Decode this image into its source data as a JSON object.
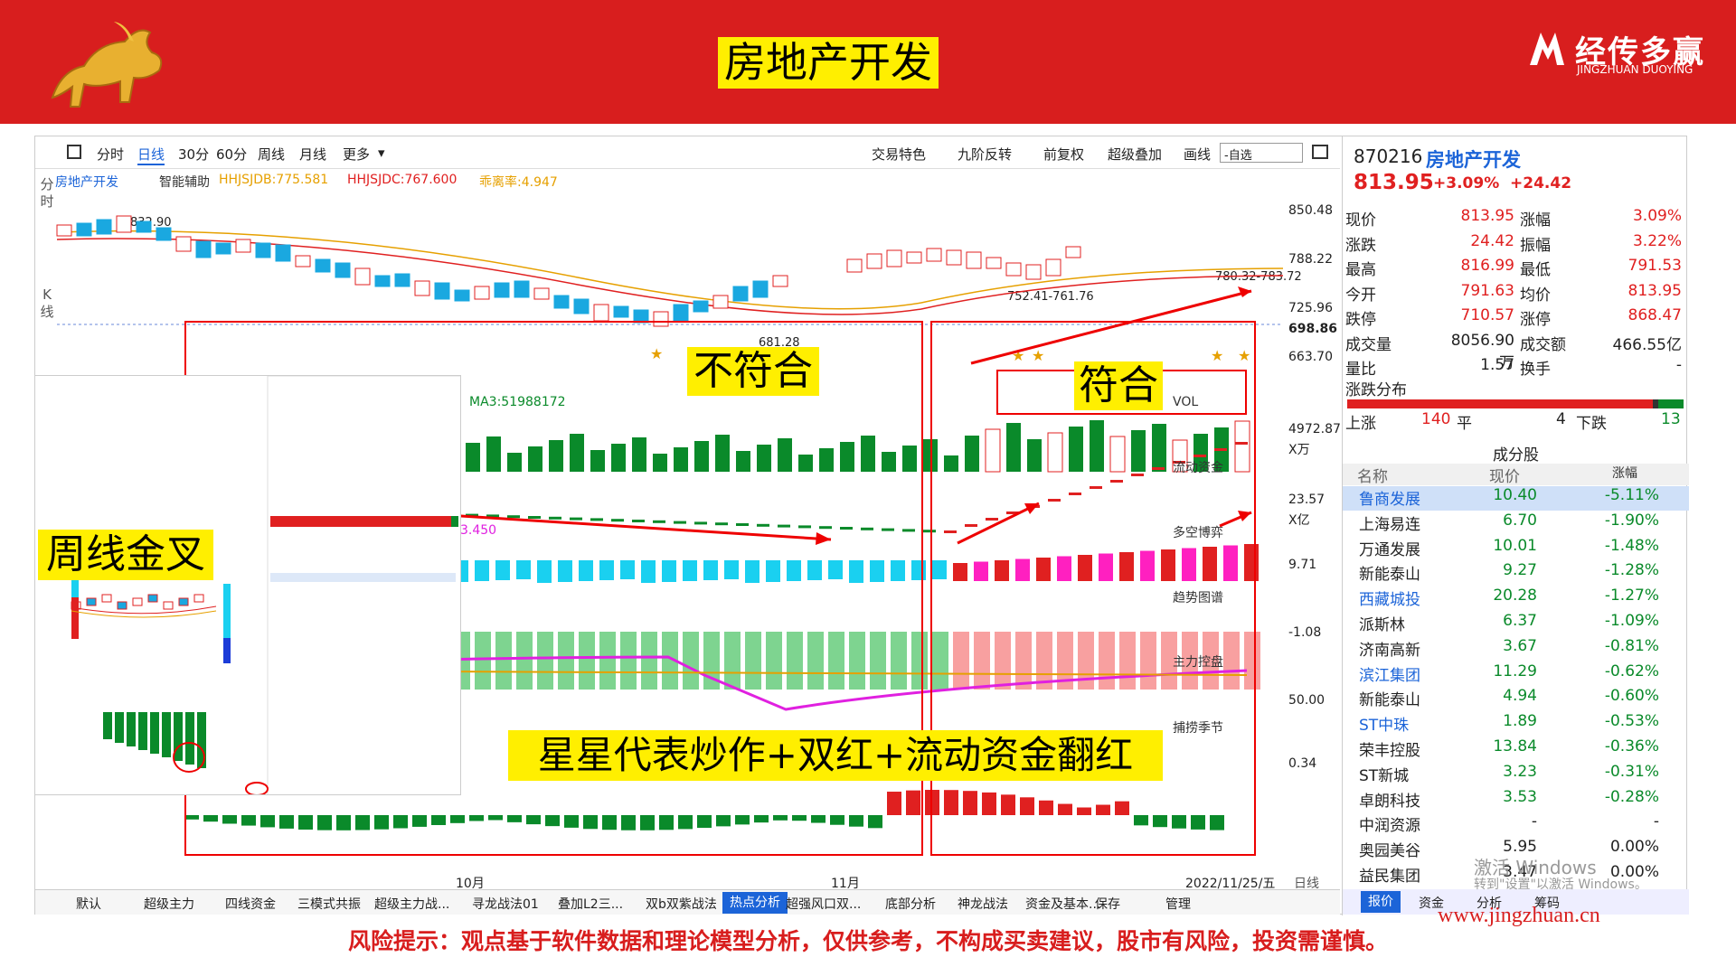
{
  "banner": {
    "title": "房地产开发",
    "logo_cn": "经传多赢",
    "logo_en": "JINGZHUAN DUOYING",
    "url": "www.jingzhuan.cn"
  },
  "toolbar": {
    "periods": [
      "分时",
      "日线",
      "30分",
      "60分",
      "周线",
      "月线",
      "更多"
    ],
    "active": "日线",
    "tools": [
      "交易特色",
      "九阶反转",
      "前复权",
      "超级叠加",
      "画线"
    ],
    "select": "-自选"
  },
  "chart": {
    "stock_label": "房地产开发",
    "assist": "智能辅助",
    "hhjsjdb": "HHJSJDB:775.581",
    "hhjsjdc": "HHJSJDC:767.600",
    "rate": "乖离率:4.947",
    "price_axis": [
      "850.48",
      "788.22",
      "725.96",
      "698.86",
      "663.70"
    ],
    "annotations": {
      "high": "832.90",
      "low": "681.28",
      "range1": "752.41-761.76",
      "range2": "780.32-783.72"
    },
    "vol_label": "MA3:51988172",
    "vol_title": "VOL",
    "vol_axis": [
      "4972.87",
      "X万"
    ],
    "flow_title": "流动资金",
    "flow_axis": [
      "23.57",
      "X亿"
    ],
    "dk_title": "多空博弈",
    "dk_value": "3.450",
    "dk_axis": "9.71",
    "trend_title": "趋势图谱",
    "trend_axis": "-1.08",
    "main_title": "主力控盘",
    "main_axis": "50.00",
    "season_title": "捕捞季节",
    "season_axis": "0.34",
    "dates": [
      "10月",
      "11月",
      "2022/11/25/五"
    ],
    "period_tag": "日线",
    "side_labels": [
      "分时",
      "K线"
    ]
  },
  "overlays": {
    "not_match": "不符合",
    "match": "符合",
    "weekly": "周线金叉",
    "summary": "星星代表炒作+双红+流动资金翻红"
  },
  "quote": {
    "code": "870216",
    "name": "房地产开发",
    "price": "813.95",
    "pct": "+3.09%",
    "chg": "+24.42",
    "rows": [
      [
        "现价",
        "813.95",
        "涨幅",
        "3.09%"
      ],
      [
        "涨跌",
        "24.42",
        "振幅",
        "3.22%"
      ],
      [
        "最高",
        "816.99",
        "最低",
        "791.53"
      ],
      [
        "今开",
        "791.63",
        "均价",
        "813.95"
      ],
      [
        "跌停",
        "710.57",
        "涨停",
        "868.47"
      ],
      [
        "成交量",
        "8056.90万",
        "成交额",
        "466.55亿"
      ],
      [
        "量比",
        "1.57",
        "换手",
        "-"
      ]
    ],
    "dist_title": "涨跌分布",
    "up_label": "上涨",
    "up": "140",
    "flat_label": "平",
    "flat": "4",
    "down_label": "下跌",
    "down": "13",
    "comp_title": "成分股",
    "comp_headers": [
      "名称",
      "现价",
      "涨幅"
    ],
    "comps": [
      [
        "鲁商发展",
        "10.40",
        "-5.11%"
      ],
      [
        "上海易连",
        "6.70",
        "-1.90%"
      ],
      [
        "万通发展",
        "10.01",
        "-1.48%"
      ],
      [
        "新能泰山",
        "9.27",
        "-1.28%"
      ],
      [
        "西藏城投",
        "20.28",
        "-1.27%"
      ],
      [
        "派斯林",
        "6.37",
        "-1.09%"
      ],
      [
        "济南高新",
        "3.67",
        "-0.81%"
      ],
      [
        "滨江集团",
        "11.29",
        "-0.62%"
      ],
      [
        "新能泰山",
        "4.94",
        "-0.60%"
      ],
      [
        "ST中珠",
        "1.89",
        "-0.53%"
      ],
      [
        "荣丰控股",
        "13.84",
        "-0.36%"
      ],
      [
        "ST新城",
        "3.23",
        "-0.31%"
      ],
      [
        "卓朗科技",
        "3.53",
        "-0.28%"
      ],
      [
        "中润资源",
        "-",
        "-"
      ],
      [
        "奥园美谷",
        "5.95",
        "0.00%"
      ],
      [
        "益民集团",
        "3.47",
        "0.00%"
      ]
    ],
    "tabs": [
      "报价",
      "资金",
      "分析",
      "筹码"
    ]
  },
  "bottom_tabs": [
    "默认",
    "超级主力",
    "四线资金",
    "三模式共振",
    "超级主力战...",
    "寻龙战法01",
    "叠加L2三...",
    "双b双紫战法",
    "热点分析",
    "超强风口双...",
    "底部分析",
    "神龙战法",
    "资金及基本...",
    "保存",
    "管理"
  ],
  "bottom_active": "热点分析",
  "watermark": {
    "line1": "激活 Windows",
    "line2": "转到\"设置\"以激活 Windows。"
  },
  "risk": "风险提示：观点基于软件数据和理论模型分析，仅供参考，不构成买卖建议，股市有风险，投资需谨慎。"
}
